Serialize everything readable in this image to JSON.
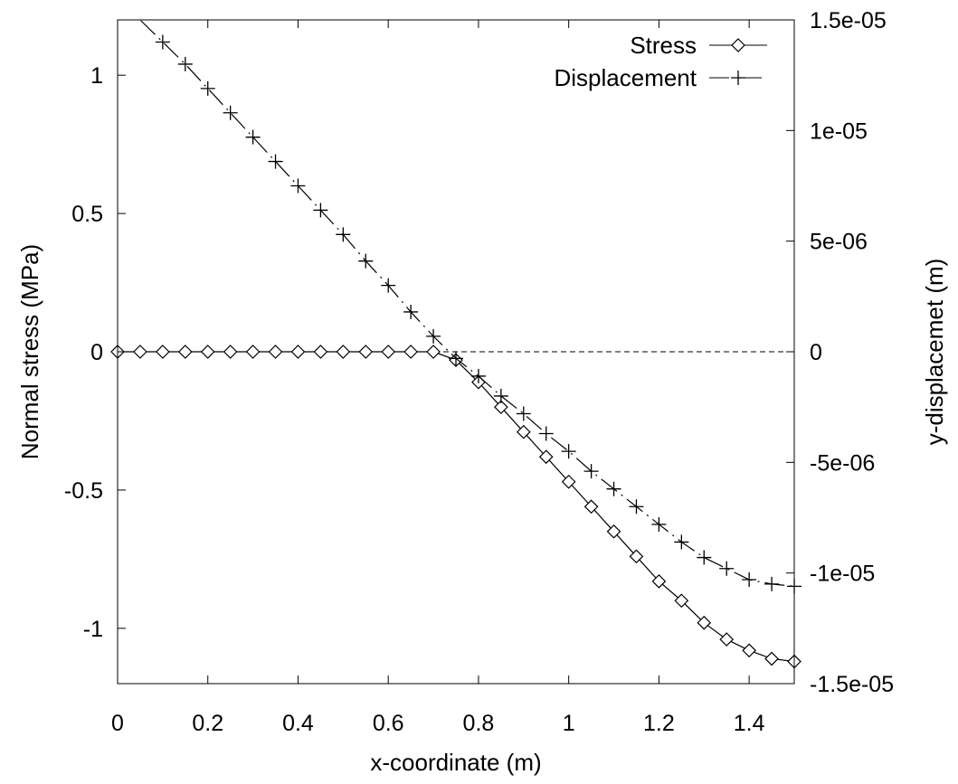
{
  "chart_data": {
    "type": "line",
    "title": "",
    "xlabel": "x-coordinate (m)",
    "ylabel": "Normal stress (MPa)",
    "y2label": "y-displacemet (m)",
    "xlim": [
      0,
      1.5
    ],
    "ylim": [
      -1.2,
      1.2
    ],
    "y2lim": [
      -1.5e-05,
      1.5e-05
    ],
    "x_ticks": [
      "0",
      "0.2",
      "0.4",
      "0.6",
      "0.8",
      "1",
      "1.2",
      "1.4"
    ],
    "y_ticks": [
      "-1",
      "-0.5",
      "0",
      "0.5",
      "1"
    ],
    "y2_ticks": [
      "-1.5e-05",
      "-1e-05",
      "-5e-06",
      "0",
      "5e-06",
      "1e-05",
      "1.5e-05"
    ],
    "zero_line": true,
    "grid": false,
    "legend_position": "top-right",
    "series": [
      {
        "name": "Stress",
        "axis": "left",
        "marker": "diamond",
        "line_style": "solid",
        "color": "#000000",
        "x": [
          0,
          0.05,
          0.1,
          0.15,
          0.2,
          0.25,
          0.3,
          0.35,
          0.4,
          0.45,
          0.5,
          0.55,
          0.6,
          0.65,
          0.7,
          0.75,
          0.8,
          0.85,
          0.9,
          0.95,
          1.0,
          1.05,
          1.1,
          1.15,
          1.2,
          1.25,
          1.3,
          1.35,
          1.4,
          1.45,
          1.5
        ],
        "values": [
          0,
          0,
          0,
          0,
          0,
          0,
          0,
          0,
          0,
          0,
          0,
          0,
          0,
          0,
          0,
          -0.03,
          -0.11,
          -0.2,
          -0.29,
          -0.38,
          -0.47,
          -0.56,
          -0.65,
          -0.74,
          -0.83,
          -0.9,
          -0.98,
          -1.04,
          -1.08,
          -1.11,
          -1.12
        ]
      },
      {
        "name": "Displacement",
        "axis": "right",
        "marker": "plus",
        "line_style": "dash-dot",
        "color": "#000000",
        "x": [
          0.1,
          0.15,
          0.2,
          0.25,
          0.3,
          0.35,
          0.4,
          0.45,
          0.5,
          0.55,
          0.6,
          0.65,
          0.7,
          0.75,
          0.8,
          0.85,
          0.9,
          0.95,
          1.0,
          1.05,
          1.1,
          1.15,
          1.2,
          1.25,
          1.3,
          1.35,
          1.4,
          1.45,
          1.5
        ],
        "values": [
          1.4e-05,
          1.3e-05,
          1.19e-05,
          1.08e-05,
          9.7e-06,
          8.6e-06,
          7.5e-06,
          6.4e-06,
          5.3e-06,
          4.1e-06,
          3e-06,
          1.8e-06,
          7e-07,
          -3e-07,
          -1.1e-06,
          -2e-06,
          -2.8e-06,
          -3.7e-06,
          -4.5e-06,
          -5.4e-06,
          -6.2e-06,
          -7e-06,
          -7.8e-06,
          -8.6e-06,
          -9.3e-06,
          -9.8e-06,
          -1.03e-05,
          -1.05e-05,
          -1.06e-05
        ]
      }
    ]
  }
}
